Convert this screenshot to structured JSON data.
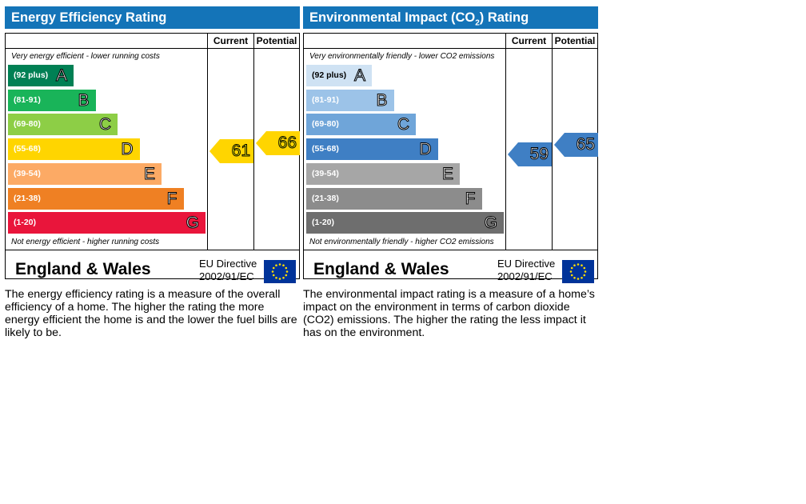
{
  "chart_data": [
    {
      "type": "bar",
      "title": "Energy Efficiency Rating",
      "columns": [
        "Current",
        "Potential"
      ],
      "top_caption": "Very energy efficient - lower running costs",
      "bottom_caption": "Not energy efficient - higher running costs",
      "bands": [
        {
          "range": "(92 plus)",
          "letter": "A",
          "min": 92,
          "max": 100,
          "color": "#008054"
        },
        {
          "range": "(81-91)",
          "letter": "B",
          "min": 81,
          "max": 91,
          "color": "#19b459"
        },
        {
          "range": "(69-80)",
          "letter": "C",
          "min": 69,
          "max": 80,
          "color": "#8dce46"
        },
        {
          "range": "(55-68)",
          "letter": "D",
          "min": 55,
          "max": 68,
          "color": "#ffd500"
        },
        {
          "range": "(39-54)",
          "letter": "E",
          "min": 39,
          "max": 54,
          "color": "#fcaa65"
        },
        {
          "range": "(21-38)",
          "letter": "F",
          "min": 21,
          "max": 38,
          "color": "#ef8023"
        },
        {
          "range": "(1-20)",
          "letter": "G",
          "min": 1,
          "max": 20,
          "color": "#e9153b"
        }
      ],
      "current": 61,
      "potential": 66,
      "current_color": "#ffd500",
      "potential_color": "#ffd500",
      "footer_country": "England & Wales",
      "footer_directive_line1": "EU Directive",
      "footer_directive_line2": "2002/91/EC",
      "description": "The energy efficiency rating is a measure of the overall efficiency of a home. The higher the rating the more energy efficient the home is and the lower the fuel bills are likely to be."
    },
    {
      "type": "bar",
      "title": "Environmental Impact (CO",
      "title_sub": "2",
      "title_end": ") Rating",
      "columns": [
        "Current",
        "Potential"
      ],
      "top_caption": "Very environmentally friendly - lower CO2 emissions",
      "bottom_caption": "Not environmentally friendly - higher CO2 emissions",
      "bands": [
        {
          "range": "(92 plus)",
          "letter": "A",
          "min": 92,
          "max": 100,
          "color": "#cfe2f3"
        },
        {
          "range": "(81-91)",
          "letter": "B",
          "min": 81,
          "max": 91,
          "color": "#9cc3e8"
        },
        {
          "range": "(69-80)",
          "letter": "C",
          "min": 69,
          "max": 80,
          "color": "#6fa5d9"
        },
        {
          "range": "(55-68)",
          "letter": "D",
          "min": 55,
          "max": 68,
          "color": "#3f7fc4"
        },
        {
          "range": "(39-54)",
          "letter": "E",
          "min": 39,
          "max": 54,
          "color": "#a6a6a6"
        },
        {
          "range": "(21-38)",
          "letter": "F",
          "min": 21,
          "max": 38,
          "color": "#8c8c8c"
        },
        {
          "range": "(1-20)",
          "letter": "G",
          "min": 1,
          "max": 20,
          "color": "#6e6e6e"
        }
      ],
      "current": 59,
      "potential": 65,
      "current_color": "#3f7fc4",
      "potential_color": "#3f7fc4",
      "footer_country": "England & Wales",
      "footer_directive_line1": "EU Directive",
      "footer_directive_line2": "2002/91/EC",
      "description": "The environmental impact rating is a measure of a home’s impact on the environment in terms of carbon dioxide (CO2) emissions. The higher the rating the less impact it has on the environment."
    }
  ]
}
